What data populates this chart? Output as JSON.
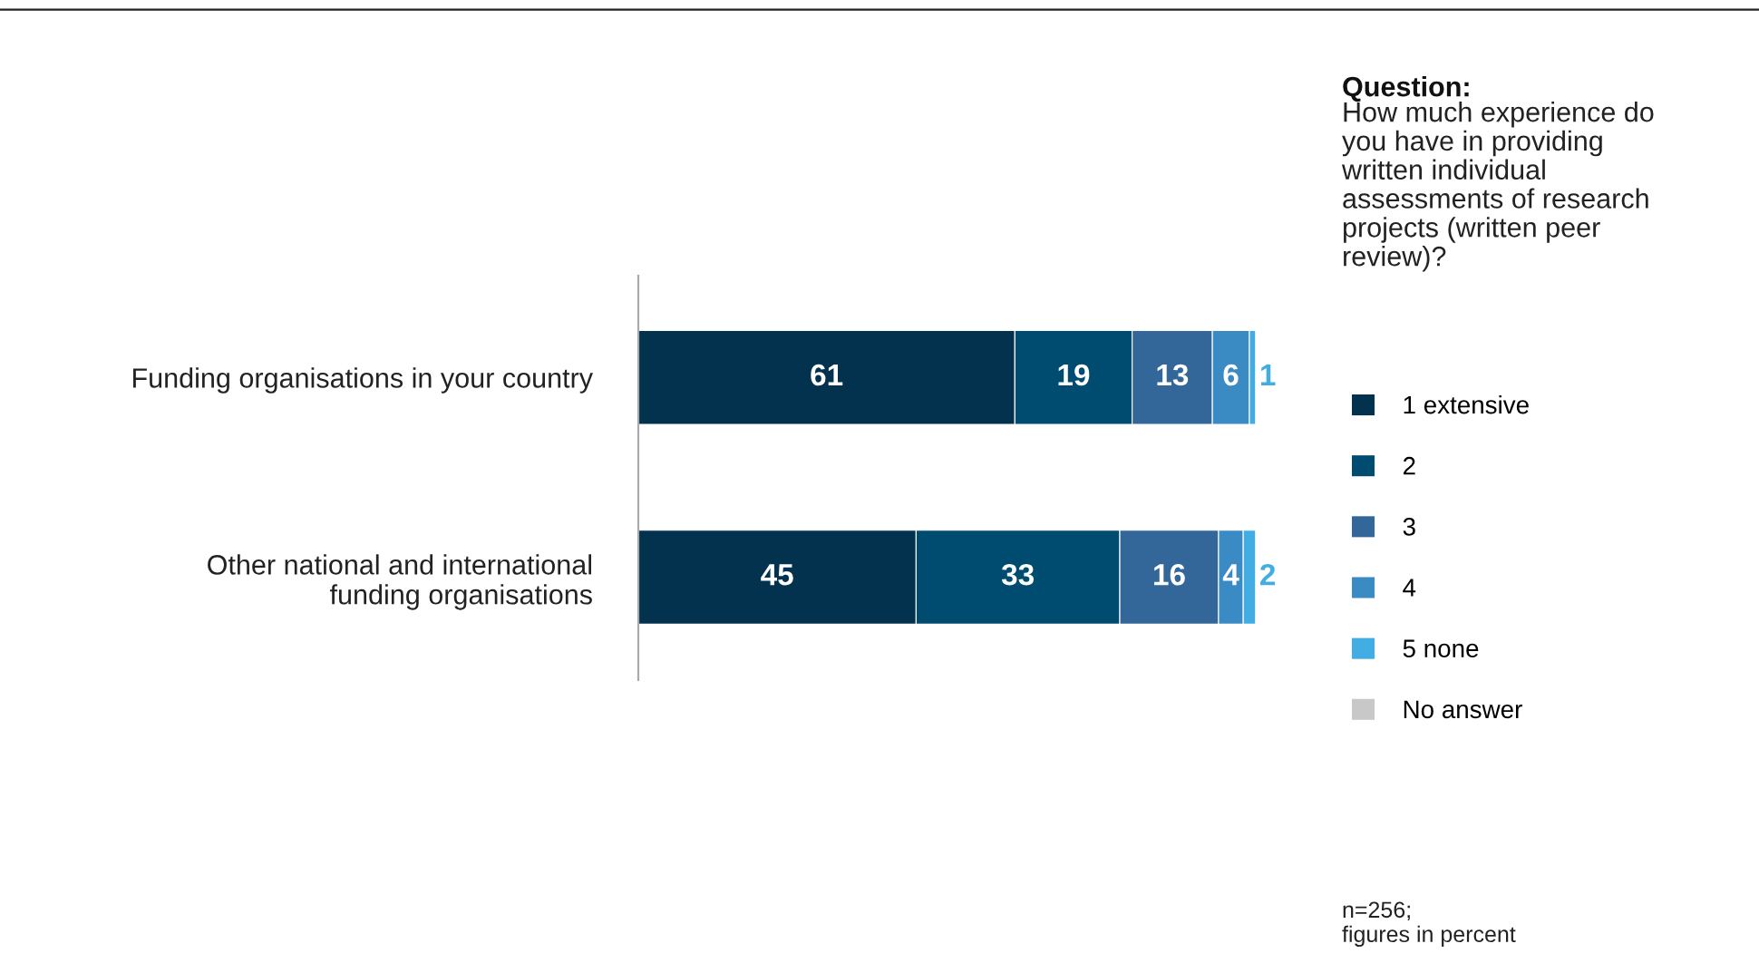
{
  "chart_data": {
    "type": "bar",
    "orientation": "horizontal",
    "stacked": true,
    "categories": [
      "Funding organisations in your country",
      "Other national and international\nfunding organisations"
    ],
    "series": [
      {
        "name": "1 extensive",
        "color": "#03324e",
        "values": [
          61,
          45
        ],
        "value_labels": [
          "61",
          "45"
        ]
      },
      {
        "name": "2",
        "color": "#004b70",
        "values": [
          19,
          33
        ],
        "value_labels": [
          "19",
          "33"
        ]
      },
      {
        "name": "3",
        "color": "#336699",
        "values": [
          13,
          16
        ],
        "value_labels": [
          "13",
          "16"
        ]
      },
      {
        "name": "4",
        "color": "#3a8bc3",
        "values": [
          6,
          4
        ],
        "value_labels": [
          "6",
          "4"
        ]
      },
      {
        "name": "5 none",
        "color": "#41ade2",
        "values": [
          1,
          2
        ],
        "value_labels": [
          "1",
          "2"
        ]
      },
      {
        "name": "No answer",
        "color": "#c8c8c8",
        "values": [
          null,
          null
        ],
        "value_labels": [
          null,
          null
        ]
      }
    ],
    "legend": "right",
    "legend_title": "Question:",
    "annotations": [
      "How much experience do\nyou have in providing\nwritten individual\nassessments of research\nprojects (written peer\nreview)?",
      "n=256;\nfigures in percent"
    ]
  }
}
